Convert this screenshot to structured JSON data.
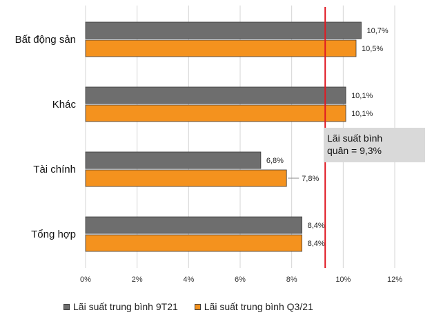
{
  "chart_data": {
    "type": "bar",
    "orientation": "horizontal",
    "categories": [
      "Bất động sản",
      "Khác",
      "Tài chính",
      "Tổng hợp"
    ],
    "series": [
      {
        "name": "Lãi suất trung bình 9T21",
        "color": "#6e6e6e",
        "values": [
          10.7,
          10.1,
          6.8,
          8.4
        ],
        "labels": [
          "10,7%",
          "10,1%",
          "6,8%",
          "8,4%"
        ]
      },
      {
        "name": "Lãi suất trung bình Q3/21",
        "color": "#f4921e",
        "values": [
          10.5,
          10.1,
          7.8,
          8.4
        ],
        "labels": [
          "10,5%",
          "10,1%",
          "7,8%",
          "8,4%"
        ]
      }
    ],
    "xlim": [
      0,
      12
    ],
    "xticks": [
      0,
      2,
      4,
      6,
      8,
      10,
      12
    ],
    "xtick_labels": [
      "0%",
      "2%",
      "4%",
      "6%",
      "8%",
      "10%",
      "12%"
    ],
    "grid": true,
    "legend_position": "bottom",
    "reference_line": {
      "value": 9.3,
      "color": "#e01b24",
      "label_lines": [
        "Lãi suất bình",
        "quân = 9,3%"
      ]
    }
  }
}
